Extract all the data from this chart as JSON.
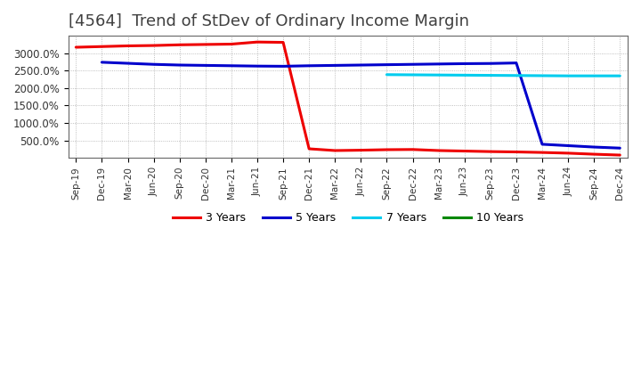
{
  "title": "[4564]  Trend of StDev of Ordinary Income Margin",
  "x_labels": [
    "Sep-19",
    "Dec-19",
    "Mar-20",
    "Jun-20",
    "Sep-20",
    "Dec-20",
    "Mar-21",
    "Jun-21",
    "Sep-21",
    "Dec-21",
    "Mar-22",
    "Jun-22",
    "Sep-22",
    "Dec-22",
    "Mar-23",
    "Jun-23",
    "Sep-23",
    "Dec-23",
    "Mar-24",
    "Jun-24",
    "Sep-24",
    "Dec-24"
  ],
  "series": {
    "3 Years": {
      "color": "#EE0000",
      "values": [
        3170,
        3190,
        3210,
        3220,
        3240,
        3250,
        3260,
        3320,
        3310,
        260,
        210,
        220,
        235,
        240,
        210,
        195,
        180,
        170,
        155,
        135,
        105,
        80
      ]
    },
    "5 Years": {
      "color": "#0000CC",
      "values": [
        null,
        2740,
        2710,
        2680,
        2660,
        2650,
        2640,
        2630,
        2625,
        2640,
        2650,
        2660,
        2670,
        2680,
        2690,
        2700,
        2705,
        2720,
        390,
        350,
        310,
        280
      ]
    },
    "7 Years": {
      "color": "#00CCEE",
      "values": [
        null,
        null,
        null,
        null,
        null,
        null,
        null,
        null,
        null,
        null,
        null,
        null,
        2385,
        2380,
        2375,
        2370,
        2365,
        2360,
        2355,
        2350,
        2350,
        2350
      ]
    },
    "10 Years": {
      "color": "#008800",
      "values": [
        null,
        null,
        null,
        null,
        null,
        null,
        null,
        null,
        null,
        null,
        null,
        null,
        null,
        null,
        null,
        null,
        null,
        null,
        null,
        null,
        null,
        null
      ]
    }
  },
  "ylim": [
    0,
    3500
  ],
  "yticks": [
    500,
    1000,
    1500,
    2000,
    2500,
    3000
  ],
  "ytick_labels": [
    "500.0%",
    "1000.0%",
    "1500.0%",
    "2000.0%",
    "2500.0%",
    "3000.0%"
  ],
  "title_color": "#404040",
  "title_fontsize": 13,
  "background_color": "#FFFFFF",
  "plot_bg_color": "#FFFFFF",
  "grid_color": "#888888",
  "spine_color": "#666666"
}
